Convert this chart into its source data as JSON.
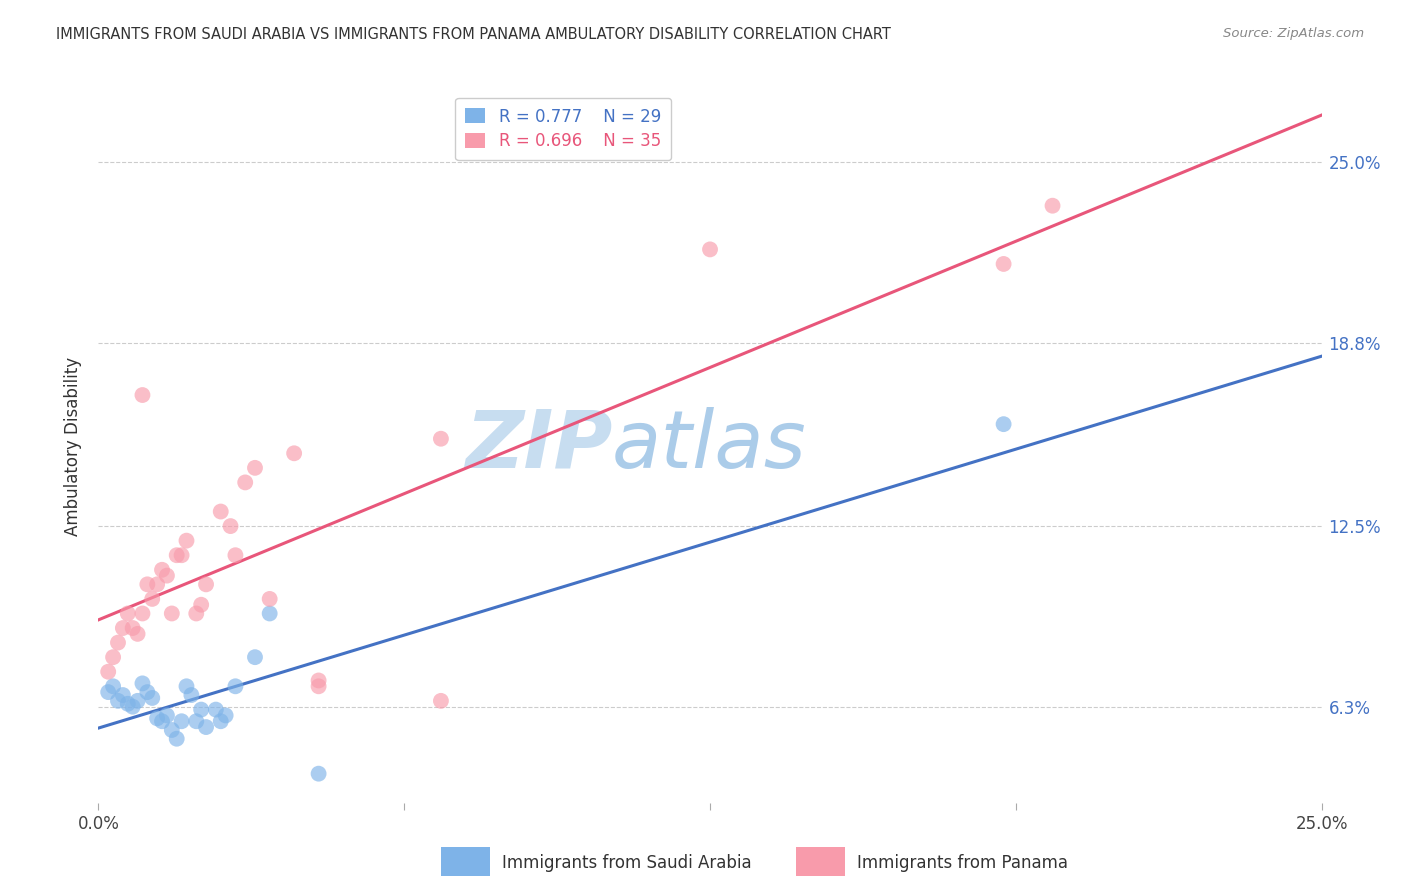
{
  "title": "IMMIGRANTS FROM SAUDI ARABIA VS IMMIGRANTS FROM PANAMA AMBULATORY DISABILITY CORRELATION CHART",
  "source": "Source: ZipAtlas.com",
  "ylabel": "Ambulatory Disability",
  "ytick_labels": [
    "6.3%",
    "12.5%",
    "18.8%",
    "25.0%"
  ],
  "ytick_values": [
    6.3,
    12.5,
    18.8,
    25.0
  ],
  "xlim": [
    0.0,
    25.0
  ],
  "ylim": [
    3.0,
    27.5
  ],
  "legend_r1": "R = 0.777",
  "legend_n1": "N = 29",
  "legend_r2": "R = 0.696",
  "legend_n2": "N = 35",
  "legend_label1": "Immigrants from Saudi Arabia",
  "legend_label2": "Immigrants from Panama",
  "blue_color": "#7EB3E8",
  "pink_color": "#F89BAB",
  "blue_line_color": "#4472C4",
  "pink_line_color": "#E8567A",
  "saudi_x": [
    0.2,
    0.3,
    0.4,
    0.5,
    0.6,
    0.7,
    0.8,
    0.9,
    1.0,
    1.1,
    1.2,
    1.3,
    1.4,
    1.5,
    1.6,
    1.7,
    1.8,
    1.9,
    2.0,
    2.1,
    2.2,
    2.4,
    2.5,
    2.6,
    2.8,
    3.2,
    3.5,
    18.5,
    4.5
  ],
  "saudi_y": [
    6.8,
    7.0,
    6.5,
    6.7,
    6.4,
    6.3,
    6.5,
    7.1,
    6.8,
    6.6,
    5.9,
    5.8,
    6.0,
    5.5,
    5.2,
    5.8,
    7.0,
    6.7,
    5.8,
    6.2,
    5.6,
    6.2,
    5.8,
    6.0,
    7.0,
    8.0,
    9.5,
    16.0,
    4.0
  ],
  "panama_x": [
    0.2,
    0.3,
    0.4,
    0.5,
    0.6,
    0.7,
    0.8,
    0.9,
    1.0,
    1.1,
    1.2,
    1.3,
    1.5,
    1.6,
    1.8,
    2.0,
    2.2,
    2.5,
    2.8,
    3.0,
    3.2,
    3.5,
    4.0,
    4.5,
    4.5,
    7.0,
    7.0,
    12.5,
    18.5,
    19.5,
    2.7,
    1.4,
    1.7,
    2.1,
    0.9
  ],
  "panama_y": [
    7.5,
    8.0,
    8.5,
    9.0,
    9.5,
    9.0,
    8.8,
    9.5,
    10.5,
    10.0,
    10.5,
    11.0,
    9.5,
    11.5,
    12.0,
    9.5,
    10.5,
    13.0,
    11.5,
    14.0,
    14.5,
    10.0,
    15.0,
    7.0,
    7.2,
    6.5,
    15.5,
    22.0,
    21.5,
    23.5,
    12.5,
    10.8,
    11.5,
    9.8,
    17.0
  ]
}
